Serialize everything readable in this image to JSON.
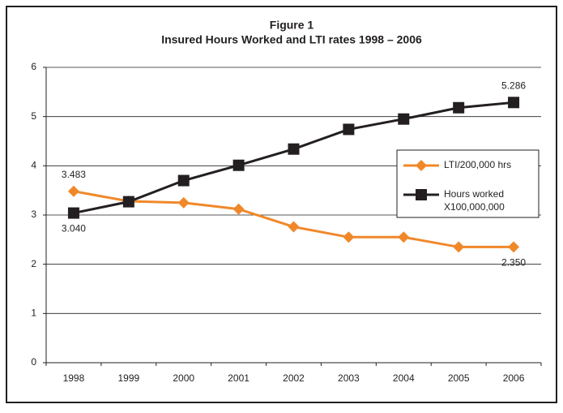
{
  "chart_data": {
    "type": "line",
    "title": "Figure 1",
    "subtitle": "Insured Hours Worked and LTI rates 1998 – 2006",
    "categories": [
      "1998",
      "1999",
      "2000",
      "2001",
      "2002",
      "2003",
      "2004",
      "2005",
      "2006"
    ],
    "series": [
      {
        "name": "LTI/200,000 hrs",
        "color": "#f0882a",
        "marker": "diamond",
        "values": [
          3.483,
          3.28,
          3.25,
          3.12,
          2.76,
          2.55,
          2.55,
          2.35,
          2.35
        ],
        "value_labels": [
          "3.483",
          null,
          null,
          null,
          null,
          null,
          null,
          null,
          "2.350"
        ]
      },
      {
        "name": "Hours worked X100,000,000",
        "color": "#231f20",
        "marker": "square",
        "values": [
          3.04,
          3.27,
          3.7,
          4.01,
          4.34,
          4.74,
          4.95,
          5.18,
          5.286
        ],
        "value_labels": [
          "3.040",
          null,
          null,
          null,
          null,
          null,
          null,
          null,
          "5.286"
        ]
      }
    ],
    "ylim": [
      0,
      6
    ],
    "yticks": [
      0,
      1,
      2,
      3,
      4,
      5,
      6
    ],
    "grid": true,
    "legend": "right"
  }
}
